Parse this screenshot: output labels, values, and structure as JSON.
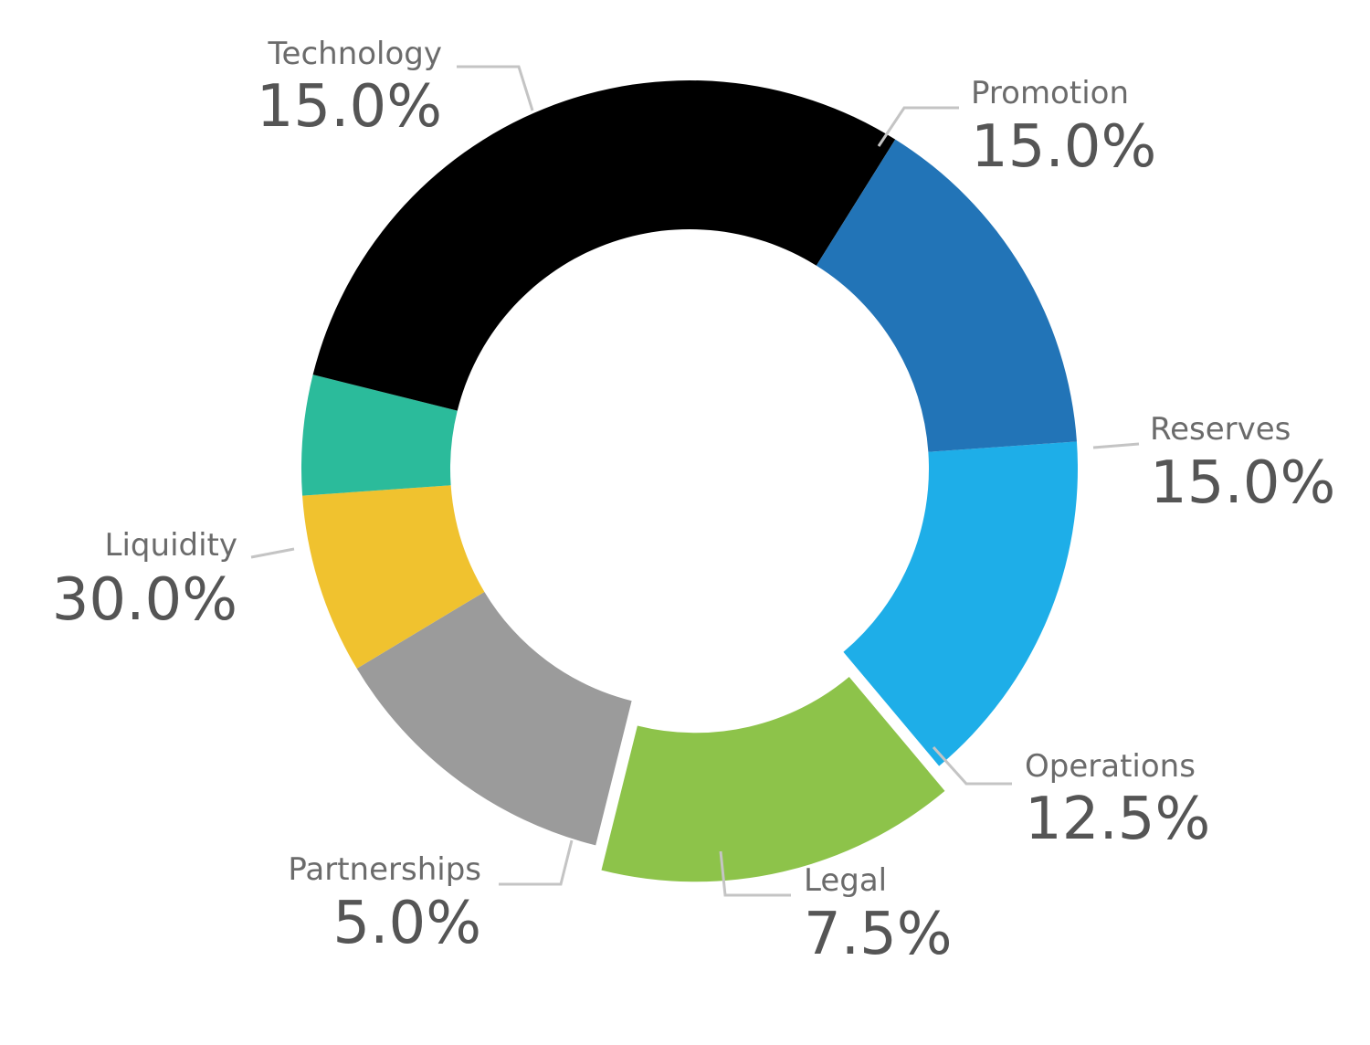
{
  "chart_data": {
    "type": "pie",
    "variant": "donut",
    "title": "",
    "slices": [
      {
        "label": "Promotion",
        "value": 15.0,
        "display": "15.0%",
        "color": "#1eaee8",
        "exploded": false
      },
      {
        "label": "Reserves",
        "value": 15.0,
        "display": "15.0%",
        "color": "#8dc34a",
        "exploded": true
      },
      {
        "label": "Operations",
        "value": 12.5,
        "display": "12.5%",
        "color": "#9b9b9b",
        "exploded": false
      },
      {
        "label": "Legal",
        "value": 7.5,
        "display": "7.5%",
        "color": "#f0c22f",
        "exploded": false
      },
      {
        "label": "Partnerships",
        "value": 5.0,
        "display": "5.0%",
        "color": "#2bbb9b",
        "exploded": false
      },
      {
        "label": "Liquidity",
        "value": 30.0,
        "display": "30.0%",
        "color": "#000000",
        "exploded": false
      },
      {
        "label": "Technology",
        "value": 15.0,
        "display": "15.0%",
        "color": "#2274b7",
        "exploded": false
      }
    ],
    "legend": "none"
  }
}
